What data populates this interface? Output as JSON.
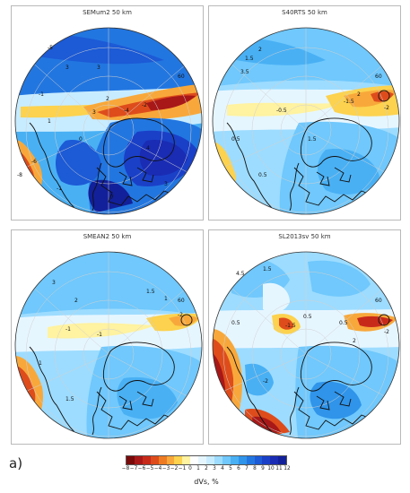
{
  "figure": {
    "panel_label": "a)",
    "panels": [
      {
        "title": "SEMum2 50 km",
        "contour_labels": [
          "-5",
          "3",
          "-1",
          "0",
          "1",
          "-2",
          "-4",
          "3",
          "2",
          "60",
          "-8",
          "-6",
          "-1",
          "4",
          "3",
          "3",
          "7"
        ]
      },
      {
        "title": "S40RTS 50 km",
        "contour_labels": [
          "3.5",
          "2",
          "1.5",
          "-0.5",
          "-1.5",
          "0.5",
          "0.5",
          "1.5",
          "60",
          "2",
          "-2"
        ]
      },
      {
        "title": "SMEAN2 50 km",
        "contour_labels": [
          "3",
          "2",
          "1.5",
          "-1",
          "-1",
          "1",
          "60",
          "-2",
          "1",
          "1.5"
        ]
      },
      {
        "title": "SL2013sv 50 km",
        "contour_labels": [
          "4.5",
          "1.5",
          "0.5",
          "-1.5",
          "0.5",
          "0.5",
          "60",
          "2",
          "-2",
          "-2"
        ]
      }
    ],
    "colorbar": {
      "label": "dVs, %",
      "ticks": [
        "−8",
        "−7",
        "−6",
        "−5",
        "−4",
        "−3",
        "−2",
        "−1",
        "0",
        "1",
        "2",
        "3",
        "4",
        "5",
        "6",
        "7",
        "8",
        "9",
        "10",
        "11",
        "12"
      ],
      "colors": [
        "#7a0a0a",
        "#a81818",
        "#c82a1a",
        "#de4c1c",
        "#ee7b22",
        "#f8a83a",
        "#fcd24e",
        "#fff2a0",
        "#ffffff",
        "#e6f6ff",
        "#c8ecff",
        "#9ddcff",
        "#70c8fc",
        "#49b0f4",
        "#2f94ea",
        "#2276e0",
        "#1c5ad6",
        "#1a40c8",
        "#1a2cb4",
        "#12209a"
      ]
    }
  }
}
